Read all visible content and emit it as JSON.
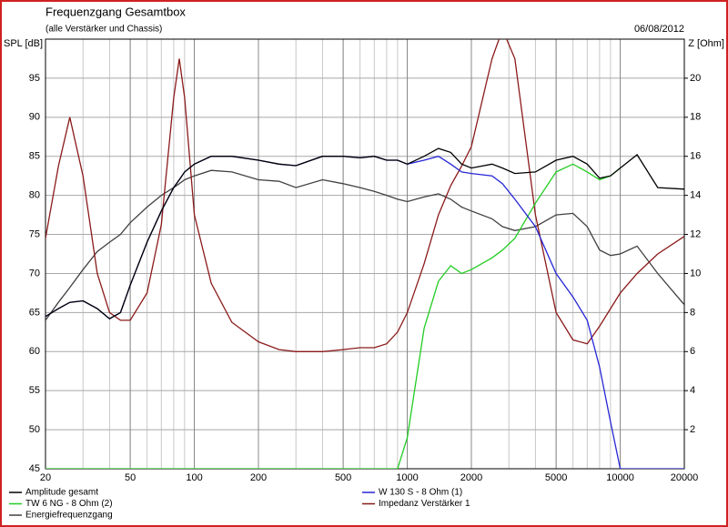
{
  "chart_data": {
    "type": "line",
    "title": "Frequenzgang Gesamtbox",
    "subtitle": "(alle Verstärker und Chassis)",
    "date": "06/08/2012",
    "ylabel": "SPL [dB]",
    "y2label": "Z [Ohm]",
    "xscale": "log",
    "grid": true,
    "x": [
      20,
      23,
      26,
      30,
      35,
      40,
      45,
      50,
      60,
      70,
      80,
      85,
      90,
      100,
      120,
      150,
      200,
      250,
      300,
      400,
      500,
      600,
      700,
      800,
      900,
      1000,
      1200,
      1400,
      1600,
      1800,
      2000,
      2500,
      2800,
      3200,
      4000,
      5000,
      6000,
      7000,
      8000,
      9000,
      10000,
      12000,
      15000,
      20000
    ],
    "xlim": [
      20,
      20000
    ],
    "xticks": [
      20,
      50,
      100,
      200,
      500,
      1000,
      2000,
      5000,
      10000,
      20000
    ],
    "ylim": [
      45,
      100
    ],
    "yticks": [
      45,
      50,
      55,
      60,
      65,
      70,
      75,
      80,
      85,
      90,
      95
    ],
    "y2lim": [
      0,
      22
    ],
    "y2ticks": [
      2,
      4,
      6,
      8,
      10,
      12,
      14,
      16,
      18,
      20
    ],
    "series": [
      {
        "name": "Amplitude gesamt",
        "color": "#000000",
        "values": [
          64.5,
          65.5,
          66.3,
          66.5,
          65.5,
          64.2,
          65,
          68.5,
          74,
          78,
          81,
          82,
          83,
          84,
          85,
          85,
          84.5,
          84,
          83.8,
          85,
          85,
          84.8,
          85,
          84.5,
          84.5,
          84,
          85,
          86,
          85.5,
          84,
          83.5,
          84,
          83.5,
          82.8,
          83,
          84.5,
          85,
          84,
          82.2,
          82.5,
          83.5,
          85.2,
          81,
          80.8
        ]
      },
      {
        "name": "W 130 S - 8 Ohm (1)",
        "color": "#2626d6",
        "values": [
          64.5,
          65.5,
          66.3,
          66.5,
          65.5,
          64.2,
          65,
          68.5,
          74,
          78,
          81,
          82,
          83,
          84,
          85,
          85,
          84.5,
          84,
          83.8,
          85,
          85,
          84.8,
          85,
          84.5,
          84.5,
          84,
          84.5,
          85,
          84,
          83,
          82.8,
          82.5,
          81.5,
          79.5,
          76,
          70,
          67,
          64,
          58,
          51,
          45,
          45,
          45,
          45
        ]
      },
      {
        "name": "TW 6 NG - 8 Ohm (2)",
        "color": "#22cc22",
        "values": [
          45,
          45,
          45,
          45,
          45,
          45,
          45,
          45,
          45,
          45,
          45,
          45,
          45,
          45,
          45,
          45,
          45,
          45,
          45,
          45,
          45,
          45,
          45,
          45,
          45,
          49,
          63,
          69,
          71,
          70,
          70.5,
          72,
          73,
          74.5,
          79,
          83,
          84,
          83,
          82,
          82.5,
          83.5,
          null,
          null,
          null
        ]
      },
      {
        "name": "Impedanz Verstärker 1",
        "color": "#8b1a1a",
        "axis": "y2",
        "values": [
          11.8,
          15.5,
          18,
          15,
          10,
          8,
          7.6,
          7.6,
          9,
          12.5,
          19,
          21,
          19,
          13,
          9.5,
          7.5,
          6.5,
          6.1,
          6,
          6,
          6.1,
          6.2,
          6.2,
          6.4,
          7,
          8,
          10.5,
          13,
          14.5,
          15.5,
          16.5,
          21,
          22.5,
          21,
          13,
          8,
          6.6,
          6.4,
          7.3,
          8.2,
          9,
          10,
          11,
          11.9
        ]
      },
      {
        "name": "Energiefrequenzgang",
        "color": "#404040",
        "values": [
          64,
          66.3,
          68.2,
          70.5,
          72.8,
          74,
          75,
          76.5,
          78.5,
          80,
          81,
          81.5,
          82,
          82.5,
          83.2,
          83,
          82,
          81.8,
          81,
          82,
          81.5,
          81,
          80.5,
          80,
          79.5,
          79.2,
          79.8,
          80.2,
          79.5,
          78.5,
          78,
          77,
          76,
          75.5,
          76,
          77.5,
          77.7,
          76,
          73,
          72.3,
          72.5,
          73.5,
          70,
          66
        ]
      }
    ]
  }
}
